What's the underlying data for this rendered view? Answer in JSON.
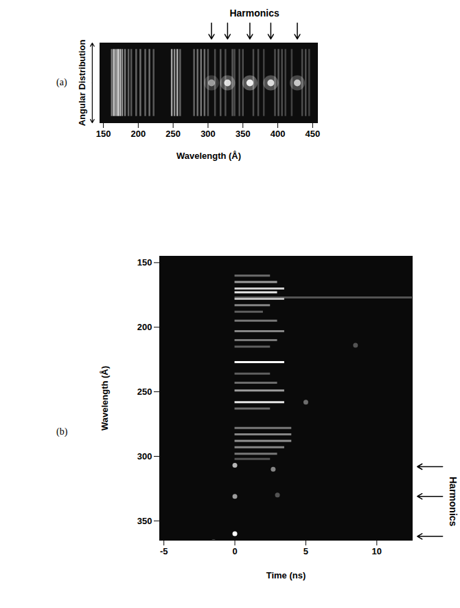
{
  "chart_data": [
    {
      "type": "spectrum",
      "label": "(a)",
      "x_label": "Wavelength (Å)",
      "y_label": "Angular Distribution",
      "annotation": "Harmonics",
      "xlim": [
        145,
        457
      ],
      "xticks": [
        150,
        200,
        250,
        300,
        350,
        400,
        450
      ],
      "tick_labels": "x",
      "lines": {
        "wavelength": [
          162,
          165,
          168,
          171,
          174,
          177,
          181,
          186,
          190,
          197,
          203,
          210,
          216,
          222,
          248,
          252,
          256,
          260,
          280,
          285,
          290,
          295,
          300,
          310,
          318,
          325,
          335,
          338,
          345,
          350,
          365,
          372,
          380,
          396,
          401,
          406,
          411,
          420,
          435,
          440,
          445
        ],
        "intensity": [
          0.5,
          0.9,
          0.7,
          1.0,
          0.8,
          0.6,
          0.5,
          0.4,
          0.35,
          0.4,
          0.45,
          0.4,
          0.45,
          0.35,
          0.7,
          0.6,
          0.75,
          0.4,
          0.4,
          0.45,
          0.5,
          0.45,
          0.35,
          0.3,
          0.35,
          0.3,
          0.35,
          0.3,
          0.3,
          0.3,
          0.3,
          0.3,
          0.25,
          0.3,
          0.35,
          0.3,
          0.25,
          0.25,
          0.3,
          0.3,
          0.25
        ]
      },
      "harmonics": {
        "wavelength": [
          305,
          328,
          360,
          390,
          428
        ],
        "intensity": [
          0.5,
          0.8,
          0.9,
          0.8,
          0.7
        ]
      }
    },
    {
      "type": "streak",
      "label": "(b)",
      "x_label": "Time (ns)",
      "y_label": "Wavelength (Å)",
      "annotation": "Harmonics",
      "xlim": [
        -5.3,
        12.5
      ],
      "xticks": [
        -5,
        0,
        5,
        10
      ],
      "ylim": [
        145,
        365
      ],
      "yticks": [
        150,
        200,
        250,
        300,
        350
      ],
      "lines": {
        "wavelength": [
          160,
          165,
          170,
          173,
          177,
          178,
          183,
          188,
          195,
          203,
          210,
          215,
          227,
          236,
          243,
          249,
          258,
          263,
          278,
          283,
          288,
          293,
          298,
          302
        ],
        "t_start": [
          0,
          0,
          0,
          0,
          0,
          0,
          0,
          0,
          0,
          0,
          0,
          0,
          0,
          0,
          0,
          0,
          0,
          0,
          0,
          0,
          0,
          0,
          0,
          0
        ],
        "t_end": [
          2.5,
          3,
          3.5,
          3,
          12.5,
          3.5,
          2.5,
          2,
          3,
          3.5,
          3,
          2.5,
          3.5,
          2.5,
          3,
          3.5,
          3.5,
          2.5,
          4,
          4,
          4,
          3.5,
          3,
          2.5
        ],
        "intensity": [
          0.4,
          0.6,
          0.8,
          0.9,
          0.3,
          0.7,
          0.5,
          0.35,
          0.45,
          0.5,
          0.45,
          0.35,
          1.0,
          0.35,
          0.4,
          0.6,
          0.9,
          0.4,
          0.45,
          0.5,
          0.55,
          0.5,
          0.45,
          0.3
        ]
      },
      "spots": {
        "time": [
          0,
          0,
          0,
          2.7,
          -1.5,
          5,
          8.5,
          3
        ],
        "wavelength": [
          307,
          331,
          360,
          310,
          366,
          258,
          214,
          330
        ],
        "intensity": [
          0.7,
          0.6,
          1.0,
          0.5,
          0.3,
          0.4,
          0.3,
          0.3
        ]
      },
      "harmonic_arrows": [
        308,
        331,
        362
      ]
    }
  ]
}
